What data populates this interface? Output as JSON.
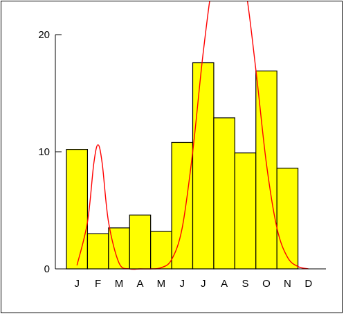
{
  "chart_data": {
    "type": "bar",
    "title": "",
    "xlabel": "",
    "ylabel": "",
    "categories": [
      "J",
      "F",
      "M",
      "A",
      "M",
      "J",
      "J",
      "A",
      "S",
      "O",
      "N",
      "D"
    ],
    "values": [
      10.2,
      3.0,
      3.5,
      4.6,
      3.2,
      10.8,
      17.6,
      12.9,
      9.9,
      16.9,
      8.6,
      0
    ],
    "ylim": [
      0,
      20
    ],
    "yticks": [
      0,
      10,
      20
    ],
    "grid": false,
    "legend": "none",
    "curve": {
      "type": "line",
      "x": [
        0.0,
        0.5,
        0.8,
        1.0,
        1.2,
        1.5,
        2.0,
        2.5,
        3.0,
        3.5,
        4.0,
        4.5,
        5.0,
        5.5,
        6.0,
        6.5,
        7.0,
        7.5,
        8.0,
        8.5,
        9.0,
        9.5,
        10.0,
        10.5,
        11.0
      ],
      "y": [
        0.3,
        4.0,
        9.0,
        10.6,
        9.0,
        4.0,
        0.5,
        0.0,
        0.0,
        0.0,
        0.1,
        0.8,
        3.5,
        10.0,
        18.5,
        25.0,
        27.0,
        26.5,
        24.0,
        17.0,
        9.0,
        3.5,
        1.0,
        0.2,
        0.0
      ]
    },
    "colors": {
      "bar_fill": "#ffff00",
      "bar_stroke": "#000000",
      "curve": "#ff0000",
      "axis": "#000000"
    }
  }
}
